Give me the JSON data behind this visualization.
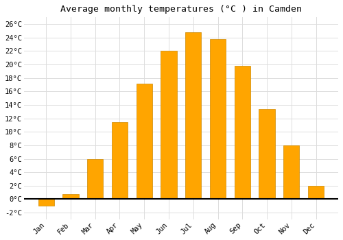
{
  "title": "Average monthly temperatures (°C ) in Camden",
  "months": [
    "Jan",
    "Feb",
    "Mar",
    "Apr",
    "May",
    "Jun",
    "Jul",
    "Aug",
    "Sep",
    "Oct",
    "Nov",
    "Dec"
  ],
  "values": [
    -1.0,
    0.8,
    6.0,
    11.5,
    17.2,
    22.0,
    24.8,
    23.8,
    19.8,
    13.4,
    8.0,
    2.0
  ],
  "bar_color": "#FFA500",
  "bar_edge_color": "#CC8800",
  "ylim": [
    -3,
    27
  ],
  "yticks": [
    -2,
    0,
    2,
    4,
    6,
    8,
    10,
    12,
    14,
    16,
    18,
    20,
    22,
    24,
    26
  ],
  "ytick_labels": [
    "-2°C",
    "0°C",
    "2°C",
    "4°C",
    "6°C",
    "8°C",
    "10°C",
    "12°C",
    "14°C",
    "16°C",
    "18°C",
    "20°C",
    "22°C",
    "24°C",
    "26°C"
  ],
  "grid_color": "#dddddd",
  "bg_color": "#ffffff",
  "title_fontsize": 9.5,
  "tick_fontsize": 7.5,
  "font_family": "monospace",
  "bar_width": 0.65
}
